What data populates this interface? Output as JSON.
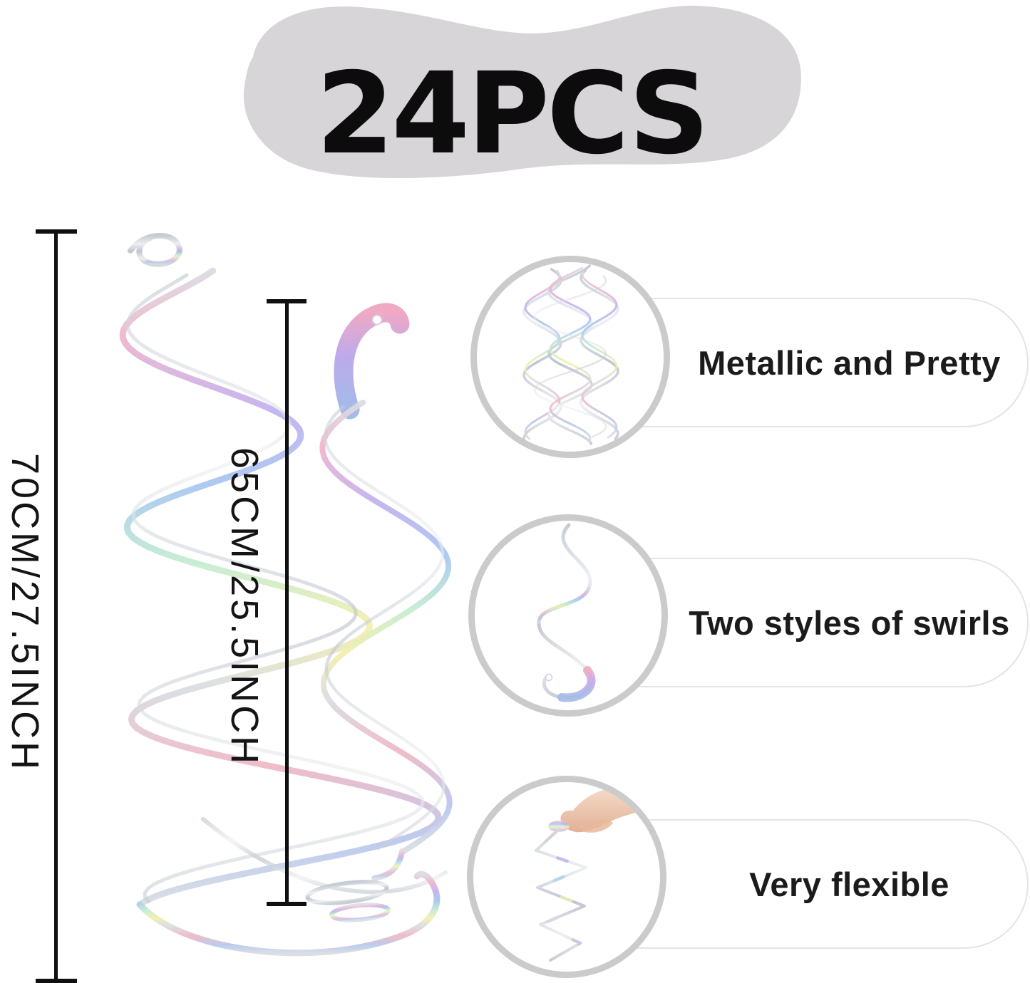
{
  "badge": {
    "text": "24PCS"
  },
  "measurements": [
    {
      "label": "70CM/27.5INCH",
      "swirl_style": "wide spiral whirl"
    },
    {
      "label": "65CM/25.5INCH",
      "swirl_style": "s-curve whirl with hanging hole"
    }
  ],
  "features": [
    {
      "label": "Metallic and Pretty",
      "icon": "holographic-swirl-cluster-photo"
    },
    {
      "label": "Two styles of swirls",
      "icon": "single-s-swirl-photo"
    },
    {
      "label": "Very flexible",
      "icon": "hand-holding-swirl-photo"
    }
  ],
  "colors": {
    "background": "#ffffff",
    "blob_gray": "#d8d5d8",
    "measure_line": "#101010",
    "text_dark": "#141414",
    "circle_border": "#cbcbcb",
    "pill_border": "#e4e4e4",
    "holographic_palette": [
      "#f0b6cc",
      "#c3b2ef",
      "#a8c8f0",
      "#c5ecd3",
      "#f4efae",
      "#d9dde3"
    ],
    "silver": "#c6cbd4",
    "skin": "#edc1a5"
  }
}
